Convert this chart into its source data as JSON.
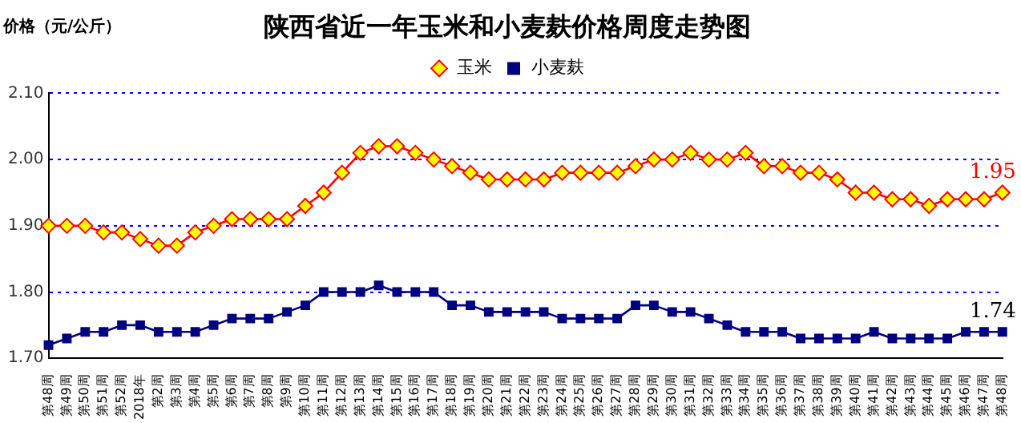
{
  "chart_data": {
    "type": "line",
    "title": "陕西省近一年玉米和小麦麸价格周度走势图",
    "ylabel": "价格（元/公斤）",
    "categories": [
      "第48周",
      "第49周",
      "第50周",
      "第51周",
      "第52周",
      "2018年",
      "第2周",
      "第3周",
      "第4周",
      "第5周",
      "第6周",
      "第7周",
      "第8周",
      "第9周",
      "第10周",
      "第11周",
      "第12周",
      "第13周",
      "第14周",
      "第15周",
      "第16周",
      "第17周",
      "第18周",
      "第19周",
      "第20周",
      "第21周",
      "第22周",
      "第23周",
      "第24周",
      "第25周",
      "第26周",
      "第27周",
      "第28周",
      "第29周",
      "第30周",
      "第31周",
      "第32周",
      "第33周",
      "第34周",
      "第35周",
      "第36周",
      "第37周",
      "第38周",
      "第39周",
      "第40周",
      "第41周",
      "第42周",
      "第43周",
      "第44周",
      "第45周",
      "第46周",
      "第47周",
      "第48周"
    ],
    "series": [
      {
        "name": "玉米",
        "color": "#ff0000",
        "marker": "diamond",
        "values": [
          1.9,
          1.9,
          1.9,
          1.89,
          1.89,
          1.88,
          1.87,
          1.87,
          1.89,
          1.9,
          1.91,
          1.91,
          1.91,
          1.91,
          1.93,
          1.95,
          1.98,
          2.01,
          2.02,
          2.02,
          2.01,
          2.0,
          1.99,
          1.98,
          1.97,
          1.97,
          1.97,
          1.97,
          1.98,
          1.98,
          1.98,
          1.98,
          1.99,
          2.0,
          2.0,
          2.01,
          2.0,
          2.0,
          2.01,
          1.99,
          1.99,
          1.98,
          1.98,
          1.97,
          1.95,
          1.95,
          1.94,
          1.94,
          1.93,
          1.94,
          1.94,
          1.94,
          1.95
        ],
        "value_labels": [
          null,
          null,
          null,
          null,
          null,
          null,
          null,
          null,
          null,
          null,
          null,
          null,
          null,
          null,
          null,
          null,
          null,
          null,
          null,
          null,
          null,
          null,
          null,
          null,
          null,
          null,
          null,
          null,
          null,
          null,
          null,
          null,
          null,
          null,
          null,
          null,
          null,
          null,
          null,
          null,
          null,
          null,
          null,
          null,
          null,
          null,
          null,
          null,
          null,
          null,
          null,
          null,
          "1.95"
        ]
      },
      {
        "name": "小麦麸",
        "color": "#000080",
        "marker": "square",
        "values": [
          1.72,
          1.73,
          1.74,
          1.74,
          1.75,
          1.75,
          1.74,
          1.74,
          1.74,
          1.75,
          1.76,
          1.76,
          1.76,
          1.77,
          1.78,
          1.8,
          1.8,
          1.8,
          1.81,
          1.8,
          1.8,
          1.8,
          1.78,
          1.78,
          1.77,
          1.77,
          1.77,
          1.77,
          1.76,
          1.76,
          1.76,
          1.76,
          1.78,
          1.78,
          1.77,
          1.77,
          1.76,
          1.75,
          1.74,
          1.74,
          1.74,
          1.73,
          1.73,
          1.73,
          1.73,
          1.74,
          1.73,
          1.73,
          1.73,
          1.73,
          1.74,
          1.74,
          1.74
        ],
        "value_labels": [
          null,
          null,
          null,
          null,
          null,
          null,
          null,
          null,
          null,
          null,
          null,
          null,
          null,
          null,
          null,
          null,
          null,
          null,
          null,
          null,
          null,
          null,
          null,
          null,
          null,
          null,
          null,
          null,
          null,
          null,
          null,
          null,
          null,
          null,
          null,
          null,
          null,
          null,
          null,
          null,
          null,
          null,
          null,
          null,
          null,
          null,
          null,
          null,
          null,
          null,
          null,
          null,
          "1.74"
        ]
      }
    ],
    "ylim": [
      1.7,
      2.1
    ],
    "yticks": [
      {
        "value": 1.7,
        "label": "1.70"
      },
      {
        "value": 1.8,
        "label": "1.80"
      },
      {
        "value": 1.9,
        "label": "1.90"
      },
      {
        "value": 2.0,
        "label": "2.00"
      },
      {
        "value": 2.1,
        "label": "2.10"
      }
    ],
    "grid": "y",
    "legend": "top",
    "line_style": "solid"
  }
}
